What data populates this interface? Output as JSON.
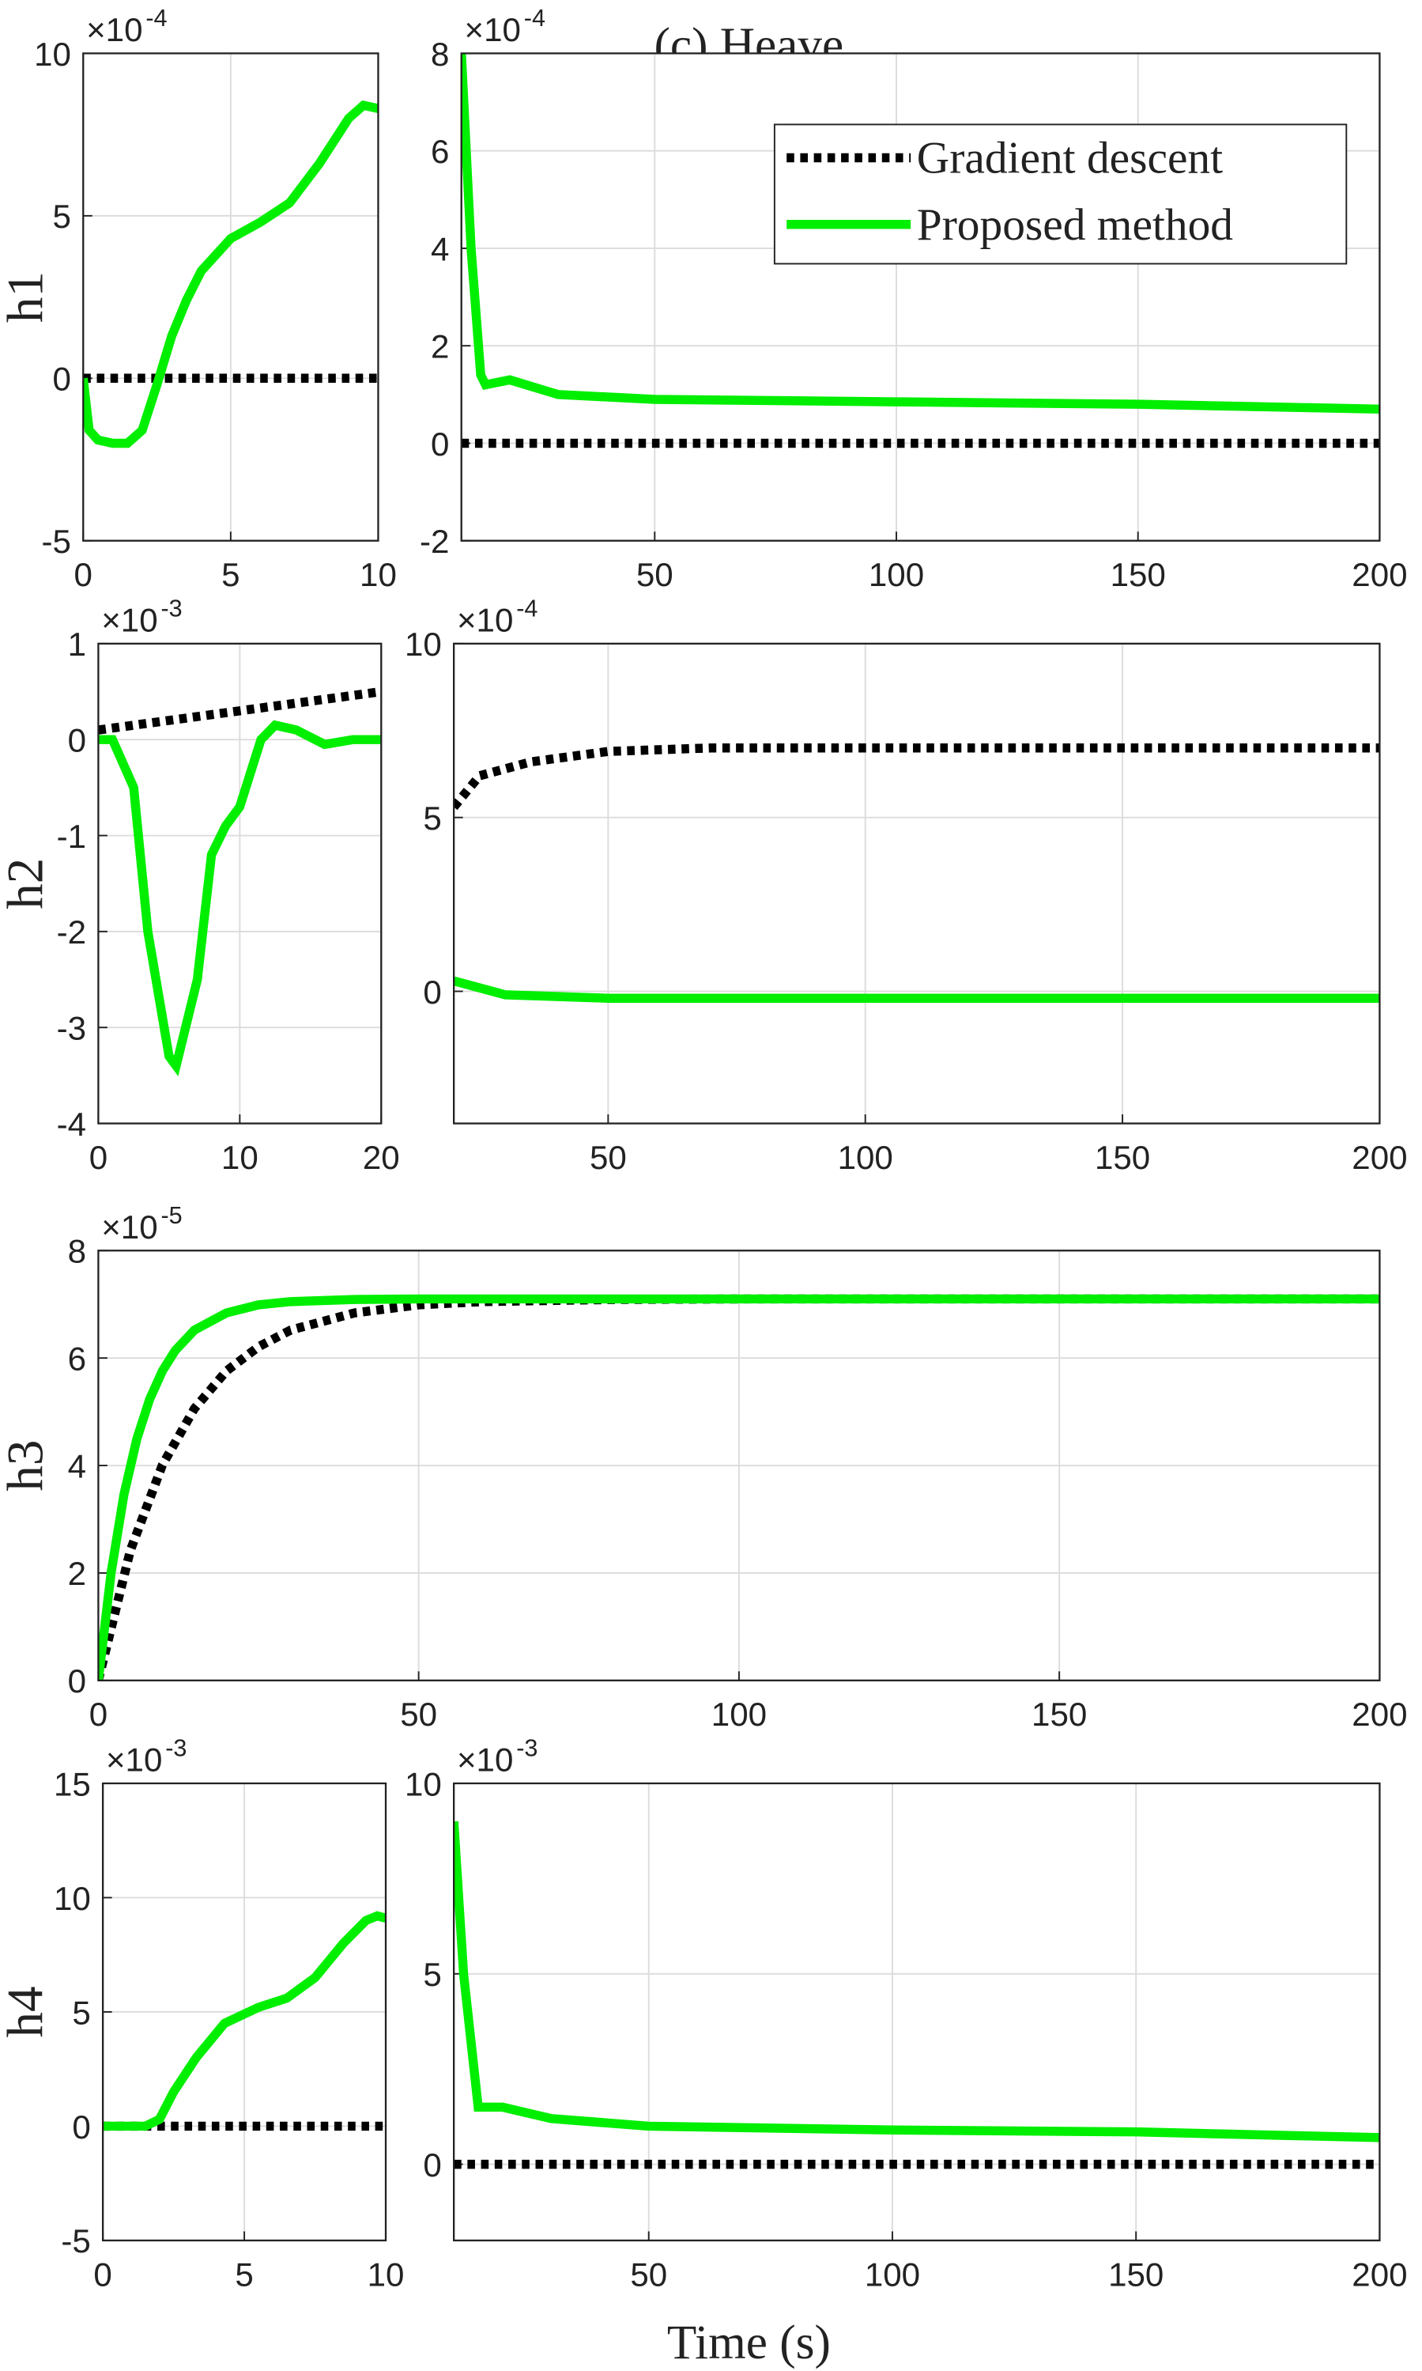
{
  "title": "(c) Heave",
  "xlabel": "Time (s)",
  "chart_data": [
    {
      "type": "line",
      "ylabel": "h1",
      "y_multiplier": "×10",
      "y_exponent": "-4",
      "xlim": [
        0,
        10
      ],
      "xticks": [
        0,
        5,
        10
      ],
      "ylim": [
        -5,
        10
      ],
      "yticks": [
        -5,
        0,
        5,
        10
      ],
      "grid": true,
      "series": [
        {
          "color": "#000000",
          "style": "dotted",
          "x": [
            0,
            10
          ],
          "values": [
            0,
            0
          ]
        },
        {
          "color": "#00ee00",
          "style": "solid",
          "x": [
            0,
            0.2,
            0.5,
            1,
            1.5,
            2,
            2.5,
            3,
            3.5,
            4,
            5,
            6,
            7,
            8,
            9,
            9.5,
            10
          ],
          "values": [
            0,
            -1.6,
            -1.9,
            -2,
            -2,
            -1.6,
            -0.2,
            1.3,
            2.4,
            3.3,
            4.3,
            4.8,
            5.4,
            6.6,
            8,
            8.4,
            8.3
          ]
        }
      ]
    },
    {
      "type": "line",
      "y_multiplier": "×10",
      "y_exponent": "-4",
      "xlim": [
        10,
        200
      ],
      "xticks": [
        50,
        100,
        150,
        200
      ],
      "ylim": [
        -2,
        8
      ],
      "yticks": [
        -2,
        0,
        2,
        4,
        6,
        8
      ],
      "grid": true,
      "legend": "upper right",
      "series": [
        {
          "name": "Gradient descent",
          "color": "#000000",
          "style": "dotted",
          "x": [
            10,
            200
          ],
          "values": [
            0,
            0
          ]
        },
        {
          "name": "Proposed method",
          "color": "#00ee00",
          "style": "solid",
          "x": [
            10,
            12,
            14,
            15,
            20,
            30,
            50,
            100,
            150,
            200
          ],
          "values": [
            8,
            4,
            1.4,
            1.2,
            1.3,
            1.0,
            0.9,
            0.85,
            0.8,
            0.7
          ]
        }
      ]
    },
    {
      "type": "line",
      "ylabel": "h2",
      "y_multiplier": "×10",
      "y_exponent": "-3",
      "xlim": [
        0,
        20
      ],
      "xticks": [
        0,
        10,
        20
      ],
      "ylim": [
        -4,
        1
      ],
      "yticks": [
        -4,
        -3,
        -2,
        -1,
        0,
        1
      ],
      "grid": true,
      "series": [
        {
          "color": "#000000",
          "style": "dotted",
          "x": [
            0,
            5,
            10,
            15,
            20
          ],
          "values": [
            0.1,
            0.2,
            0.3,
            0.4,
            0.5
          ]
        },
        {
          "color": "#00ee00",
          "style": "solid",
          "x": [
            0,
            1,
            2.5,
            3.5,
            5,
            5.5,
            7,
            8,
            9,
            10,
            11.5,
            12.5,
            14,
            16,
            18,
            20
          ],
          "values": [
            0,
            0,
            -0.5,
            -2,
            -3.3,
            -3.4,
            -2.5,
            -1.2,
            -0.9,
            -0.7,
            0,
            0.15,
            0.1,
            -0.05,
            0,
            0
          ]
        }
      ]
    },
    {
      "type": "line",
      "y_multiplier": "×10",
      "y_exponent": "-4",
      "xlim": [
        20,
        200
      ],
      "xticks": [
        50,
        100,
        150,
        200
      ],
      "ylim": [
        -3.8,
        10
      ],
      "yticks": [
        0,
        5,
        10
      ],
      "grid": true,
      "series": [
        {
          "color": "#000000",
          "style": "dotted",
          "x": [
            20,
            25,
            35,
            50,
            70,
            200
          ],
          "values": [
            5.3,
            6.2,
            6.6,
            6.9,
            7,
            7
          ]
        },
        {
          "color": "#00ee00",
          "style": "solid",
          "x": [
            20,
            30,
            50,
            200
          ],
          "values": [
            0.3,
            -0.1,
            -0.2,
            -0.2
          ]
        }
      ]
    },
    {
      "type": "line",
      "ylabel": "h3",
      "y_multiplier": "×10",
      "y_exponent": "-5",
      "xlim": [
        0,
        200
      ],
      "xticks": [
        0,
        50,
        100,
        150,
        200
      ],
      "ylim": [
        0,
        8
      ],
      "yticks": [
        0,
        2,
        4,
        6,
        8
      ],
      "grid": true,
      "series": [
        {
          "color": "#000000",
          "style": "dotted",
          "x": [
            0,
            5,
            10,
            15,
            20,
            25,
            30,
            40,
            50,
            60,
            80,
            100,
            150,
            200
          ],
          "values": [
            0,
            2.42,
            4.01,
            5.06,
            5.76,
            6.21,
            6.52,
            6.84,
            6.99,
            7.05,
            7.09,
            7.1,
            7.1,
            7.1
          ]
        },
        {
          "color": "#00ee00",
          "style": "solid",
          "x": [
            0,
            2,
            4,
            6,
            8,
            10,
            12,
            15,
            20,
            25,
            30,
            40,
            50,
            100,
            150,
            200
          ],
          "values": [
            0,
            2.01,
            3.46,
            4.49,
            5.23,
            5.76,
            6.14,
            6.52,
            6.84,
            6.99,
            7.05,
            7.09,
            7.1,
            7.1,
            7.1,
            7.1
          ]
        }
      ]
    },
    {
      "type": "line",
      "ylabel": "h4",
      "y_multiplier": "×10",
      "y_exponent": "-3",
      "xlim": [
        0,
        10
      ],
      "xticks": [
        0,
        5,
        10
      ],
      "ylim": [
        -5,
        15
      ],
      "yticks": [
        -5,
        0,
        5,
        10,
        15
      ],
      "grid": true,
      "series": [
        {
          "color": "#000000",
          "style": "dotted",
          "x": [
            0,
            10
          ],
          "values": [
            0,
            0
          ]
        },
        {
          "color": "#00ee00",
          "style": "solid",
          "x": [
            0,
            1.5,
            2,
            2.5,
            3.3,
            4.3,
            5.5,
            6.5,
            7.5,
            8.5,
            9.3,
            9.7,
            10
          ],
          "values": [
            0,
            0,
            0.3,
            1.5,
            3,
            4.5,
            5.2,
            5.6,
            6.5,
            8,
            9,
            9.2,
            9.1
          ]
        }
      ]
    },
    {
      "type": "line",
      "y_multiplier": "×10",
      "y_exponent": "-3",
      "xlim": [
        10,
        200
      ],
      "xticks": [
        50,
        100,
        150,
        200
      ],
      "ylim": [
        -2,
        10
      ],
      "yticks": [
        0,
        5,
        10
      ],
      "grid": true,
      "series": [
        {
          "color": "#000000",
          "style": "dotted",
          "x": [
            10,
            200
          ],
          "values": [
            0,
            0
          ]
        },
        {
          "color": "#00ee00",
          "style": "solid",
          "x": [
            10,
            12,
            15,
            20,
            30,
            50,
            100,
            150,
            200
          ],
          "values": [
            9,
            5,
            1.5,
            1.5,
            1.2,
            1.0,
            0.9,
            0.85,
            0.7
          ]
        }
      ]
    }
  ]
}
